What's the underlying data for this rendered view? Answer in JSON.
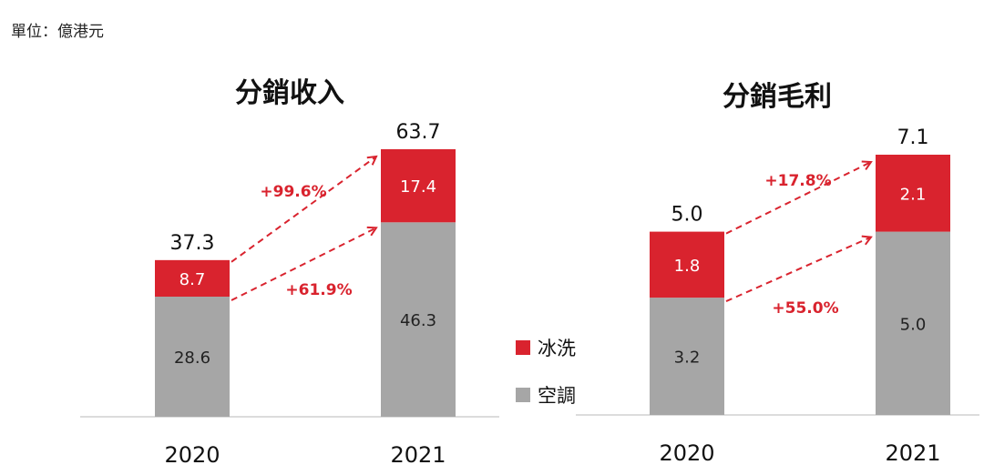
{
  "unit_label": "單位：億港元",
  "colors": {
    "ice_wash": "#d9232e",
    "aircon": "#a6a6a6",
    "arrow": "#d9232e"
  },
  "legend": [
    {
      "name": "冰洗",
      "color": "#d9232e"
    },
    {
      "name": "空調",
      "color": "#a6a6a6"
    }
  ],
  "chart_data": [
    {
      "type": "bar",
      "stacked": true,
      "title": "分銷收入",
      "categories": [
        "2020",
        "2021"
      ],
      "series": [
        {
          "name": "空調",
          "values": [
            28.6,
            46.3
          ],
          "labels": [
            "28.6",
            "46.3"
          ]
        },
        {
          "name": "冰洗",
          "values": [
            8.7,
            17.4
          ],
          "labels": [
            "8.7",
            "17.4"
          ]
        }
      ],
      "totals": [
        "37.3",
        "63.7"
      ],
      "growth": [
        {
          "series": "冰洗",
          "label": "+99.6%"
        },
        {
          "series": "空調",
          "label": "+61.9%"
        }
      ],
      "ylim": [
        0,
        63.7
      ]
    },
    {
      "type": "bar",
      "stacked": true,
      "title": "分銷毛利",
      "categories": [
        "2020",
        "2021"
      ],
      "series": [
        {
          "name": "空調",
          "values": [
            3.2,
            5.0
          ],
          "labels": [
            "3.2",
            "5.0"
          ]
        },
        {
          "name": "冰洗",
          "values": [
            1.8,
            2.1
          ],
          "labels": [
            "1.8",
            "2.1"
          ]
        }
      ],
      "totals": [
        "5.0",
        "7.1"
      ],
      "growth": [
        {
          "series": "冰洗",
          "label": "+17.8%"
        },
        {
          "series": "空調",
          "label": "+55.0%"
        }
      ],
      "ylim": [
        0,
        7.1
      ]
    }
  ]
}
